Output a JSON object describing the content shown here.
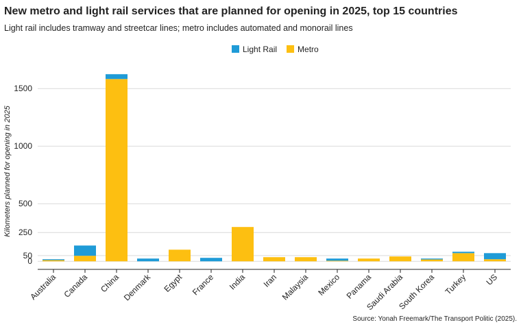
{
  "chart_data": {
    "type": "stacked-bar",
    "title": "New metro and light rail services that are planned for opening in 2025, top 15 countries",
    "subtitle": "Light rail includes tramway and streetcar lines; metro includes automated and monorail lines",
    "y_label": "Kilometers planned for opening in 2025",
    "source": "Source: Yonah Freemark/The Transport Politic (2025).",
    "categories": [
      "Australia",
      "Canada",
      "China",
      "Denmark",
      "Egypt",
      "France",
      "India",
      "Iran",
      "Malaysia",
      "Mexico",
      "Panama",
      "Saudi Arabia",
      "South Korea",
      "Turkey",
      "US"
    ],
    "series": [
      {
        "name": "Light Rail",
        "color": "#1f9bd7",
        "values": [
          8,
          89,
          42,
          24,
          0,
          30,
          0,
          0,
          0,
          19,
          0,
          0,
          8,
          12,
          53
        ]
      },
      {
        "name": "Metro",
        "color": "#fdbf11",
        "values": [
          10,
          48,
          1583,
          0,
          101,
          0,
          298,
          36,
          36,
          5,
          24,
          42,
          16,
          71,
          18
        ]
      }
    ],
    "ylim": [
      -70,
      1680
    ],
    "yticks": [
      0,
      50,
      250,
      500,
      1000,
      1500
    ],
    "grid": true
  }
}
